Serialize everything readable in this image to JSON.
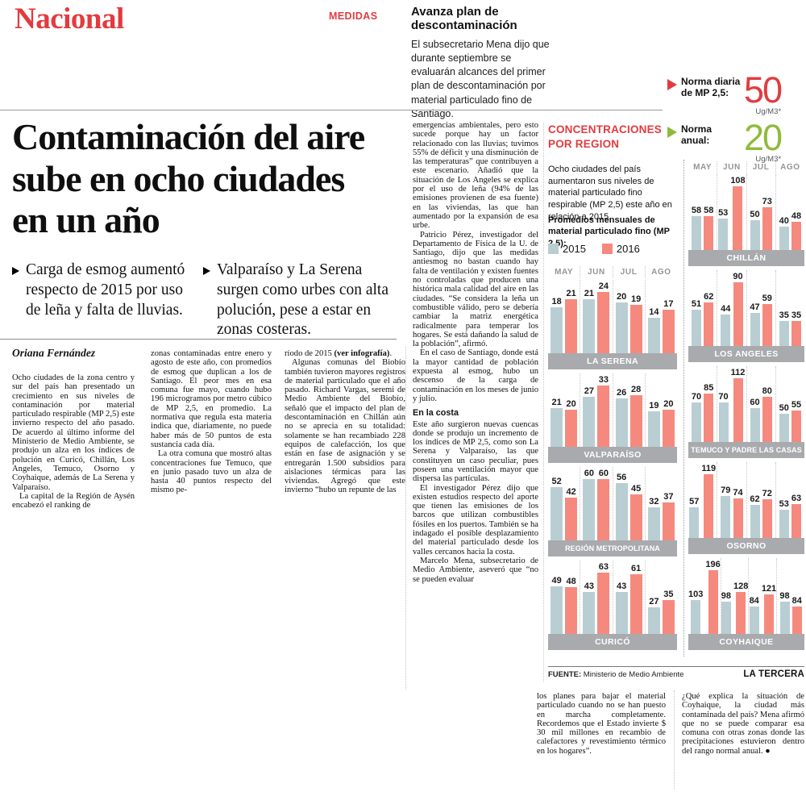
{
  "masthead": {
    "section": "Nacional",
    "kicker": "MEDIDAS"
  },
  "sidebar_story": {
    "title": "Avanza plan de descontaminación",
    "body": "El subsecretario Mena dijo que durante septiembre se evaluarán alcances del primer plan de descontaminación por material particulado fino de Santiago."
  },
  "norms": {
    "daily": {
      "label": "Norma diaria de MP 2,5:",
      "value": "50",
      "unit": "Ug/M3*",
      "color": "#e23b3f"
    },
    "annual": {
      "label": "Norma anual:",
      "value": "20",
      "unit": "Ug/M3*",
      "color": "#8fba3c"
    }
  },
  "headline": "Contaminación del aire sube en ocho ciudades en un año",
  "bullets": [
    "Carga de esmog aumentó respecto de 2015 por uso de leña y falta de lluvias.",
    "Valparaíso y La Serena surgen como urbes con alta polución, pese a estar en zonas costeras."
  ],
  "byline": "Oriana Fernández",
  "article": {
    "col1": [
      "Ocho ciudades de la zona centro y sur del país han presentado un crecimiento en sus niveles de contaminación por material particulado respirable (MP 2,5) este invierno respecto del año pasado. De acuerdo al último informe del Ministerio de Medio Ambiente, se produjo un alza en los índices de polución en Curicó, Chillán, Los Angeles, Temuco, Osorno y Coyhaique, además de La Serena y Valparaíso.",
      "La capital de la Región de Aysén encabezó el ranking de"
    ],
    "col2": [
      "zonas contaminadas entre enero y agosto de este año, con promedios de esmog que duplican a los de Santiago. El peor mes en esa comuna fue mayo, cuando hubo 196 microgramos por metro cúbico de MP 2,5, en promedio. La normativa que regula esta materia indica que, diariamente, no puede haber más de 50 puntos de esta sustancia cada día.",
      "La otra comuna que mostró altas concentraciones fue Temuco, que en junio pasado tuvo un alza de hasta 40 puntos respecto del mismo pe-"
    ],
    "col3_p1a": "ríodo de 2015 ",
    "col3_p1b": "(ver infografía)",
    "col3_p1c": ".",
    "col3_p2": "Algunas comunas del Biobío también tuvieron mayores registros de material particulado que el año pasado. Richard Vargas, seremi de Medio Ambiente del Biobío, señaló que el impacto del plan de descontaminación en Chillán aún no se aprecia en su totalidad: solamente se han recambiado 228 equipos de calefacción, los que están en fase de asignación y se entregarán 1.500 subsidios para aislaciones térmicas para las viviendas. Agregó que este invierno “hubo un repunte de las",
    "col4_p1": "emergencias ambientales, pero esto sucede porque hay un factor relacionado con las lluvias; tuvimos 55% de déficit y una disminución de las temperaturas” que contribuyen a este escenario. Añadió que la situación de Los Angeles se explica por el uso de leña (94% de las emisiones provienen de esa fuente) en las viviendas, las que han aumentado por la expansión de esa urbe.",
    "col4_p2": "Patricio Pérez, investigador del Departamento de Física de la U. de Santiago, dijo que las medidas antiesmog no bastan cuando hay falta de ventilación y existen fuentes no controladas que producen una histórica mala calidad del aire en las ciudades. “Se considera la leña un combustible válido, pero se debería cambiar la matriz energética radicalmente para temperar los hogares. Se está dañando la salud de la población”, afirmó.",
    "col4_p3": "En el caso de Santiago, donde está la mayor cantidad de población expuesta al esmog, hubo un descenso de la carga de contaminación en los meses de junio y julio.",
    "col4_subhead": "En la costa",
    "col4_p4": "Este año surgieron nuevas cuencas donde se produjo un incremento de los índices de MP 2,5, como son La Serena y Valparaíso, las que constituyen un caso peculiar, pues poseen una ventilación mayor que dispersa las partículas.",
    "col4_p5": "El investigador Pérez dijo que existen estudios respecto del aporte que tienen las emisiones de los barcos que utilizan combustibles fósiles en los puertos. También se ha indagado el posible desplazamiento del material particulado desde los valles cercanos hacia la costa.",
    "col4_p6": "Marcelo Mena, subsecretario de Medio Ambiente, aseveró que “no se pueden evaluar",
    "col5": [
      "los planes para bajar el material particulado cuando no se han puesto en marcha completamente. Recordemos que el Estado invierte $ 30 mil millones en recambio de calefactores y revestimiento térmico en los hogares”."
    ],
    "col6": [
      "¿Qué explica la situación de Coyhaique, la ciudad más contaminada del país? Mena afirmó que no se puede comparar esa comuna con otras zonas donde las precipitaciones estuvieron dentro del rango normal anual. ●"
    ]
  },
  "infographic": {
    "title": "CONCENTRACIONES POR REGION",
    "intro": "Ocho ciudades del país aumentaron sus niveles de material particulado fino respirable (MP 2,5) este año en relación a 2015.",
    "subtitle": "Promedios mensuales de material particulado fino (MP 2,5):",
    "legend": [
      {
        "label": "2015",
        "color": "#b9ced3"
      },
      {
        "label": "2016",
        "color": "#f6897e"
      }
    ],
    "months": [
      "MAY",
      "JUN",
      "JUL",
      "AGO"
    ],
    "source_label": "FUENTE:",
    "source_text": " Ministerio de Medio Ambiente",
    "credit": "LA TERCERA"
  },
  "chart_data": [
    {
      "type": "bar",
      "column": "left",
      "city": "LA SERENA",
      "categories": [
        "MAY",
        "JUN",
        "JUL",
        "AGO"
      ],
      "series": [
        {
          "name": "2015",
          "values": [
            18,
            21,
            20,
            14
          ]
        },
        {
          "name": "2016",
          "values": [
            21,
            24,
            19,
            17
          ]
        }
      ]
    },
    {
      "type": "bar",
      "column": "left",
      "city": "VALPARAÍSO",
      "categories": [
        "MAY",
        "JUN",
        "JUL",
        "AGO"
      ],
      "series": [
        {
          "name": "2015",
          "values": [
            21,
            27,
            26,
            19
          ]
        },
        {
          "name": "2016",
          "values": [
            20,
            33,
            28,
            20
          ]
        }
      ]
    },
    {
      "type": "bar",
      "column": "left",
      "city": "REGIÓN METROPOLITANA",
      "categories": [
        "MAY",
        "JUN",
        "JUL",
        "AGO"
      ],
      "series": [
        {
          "name": "2015",
          "values": [
            52,
            60,
            56,
            32
          ]
        },
        {
          "name": "2016",
          "values": [
            42,
            60,
            45,
            37
          ]
        }
      ]
    },
    {
      "type": "bar",
      "column": "left",
      "city": "CURICÓ",
      "categories": [
        "MAY",
        "JUN",
        "JUL",
        "AGO"
      ],
      "series": [
        {
          "name": "2015",
          "values": [
            49,
            43,
            43,
            27
          ]
        },
        {
          "name": "2016",
          "values": [
            48,
            63,
            61,
            35
          ]
        }
      ]
    },
    {
      "type": "bar",
      "column": "right",
      "city": "CHILLÁN",
      "categories": [
        "MAY",
        "JUN",
        "JUL",
        "AGO"
      ],
      "series": [
        {
          "name": "2015",
          "values": [
            58,
            53,
            50,
            40
          ]
        },
        {
          "name": "2016",
          "values": [
            58,
            108,
            73,
            48
          ]
        }
      ]
    },
    {
      "type": "bar",
      "column": "right",
      "city": "LOS ANGELES",
      "categories": [
        "MAY",
        "JUN",
        "JUL",
        "AGO"
      ],
      "series": [
        {
          "name": "2015",
          "values": [
            51,
            44,
            47,
            35
          ]
        },
        {
          "name": "2016",
          "values": [
            62,
            90,
            59,
            35
          ]
        }
      ]
    },
    {
      "type": "bar",
      "column": "right",
      "city": "TEMUCO Y PADRE LAS CASAS",
      "categories": [
        "MAY",
        "JUN",
        "JUL",
        "AGO"
      ],
      "series": [
        {
          "name": "2015",
          "values": [
            70,
            70,
            60,
            50
          ]
        },
        {
          "name": "2016",
          "values": [
            85,
            112,
            80,
            55
          ]
        }
      ]
    },
    {
      "type": "bar",
      "column": "right",
      "city": "OSORNO",
      "categories": [
        "MAY",
        "JUN",
        "JUL",
        "AGO"
      ],
      "series": [
        {
          "name": "2015",
          "values": [
            57,
            79,
            62,
            53
          ]
        },
        {
          "name": "2016",
          "values": [
            119,
            74,
            72,
            63
          ]
        }
      ]
    },
    {
      "type": "bar",
      "column": "right",
      "city": "COYHAIQUE",
      "categories": [
        "MAY",
        "JUN",
        "JUL",
        "AGO"
      ],
      "series": [
        {
          "name": "2015",
          "values": [
            103,
            98,
            84,
            98
          ]
        },
        {
          "name": "2016",
          "values": [
            196,
            128,
            121,
            84
          ]
        }
      ]
    }
  ]
}
